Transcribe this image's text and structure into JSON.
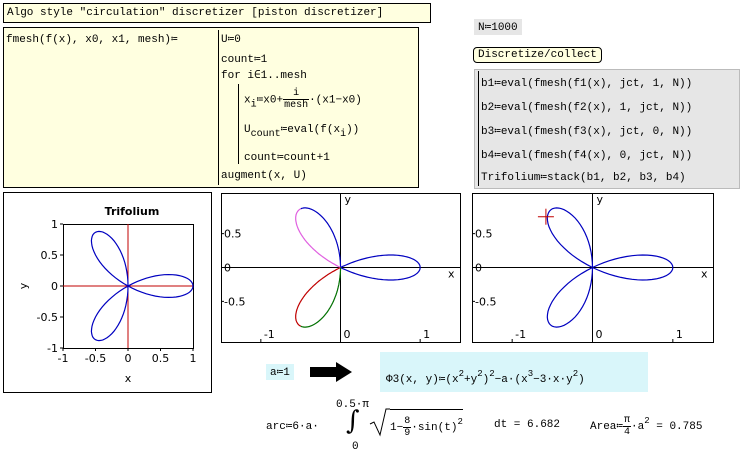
{
  "header": {
    "title": "Algo style \"circulation\" discretizer [piston discretizer]"
  },
  "program": {
    "definition": "fmesh(f(x), x0, x1, mesh)≔",
    "lines": [
      "U≔0",
      "count≔1",
      "for i∈1..mesh"
    ],
    "loop_x": [
      "x",
      "i",
      "≔x0+",
      "i",
      "mesh",
      "·(x1−x0)"
    ],
    "loop_u": [
      "U",
      "count",
      "≔eval(f(x",
      "i",
      "))"
    ],
    "loop_count": "count≔count+1",
    "result": "augment(x, U)"
  },
  "setup": {
    "n": "N≔1000",
    "button": "Discretize/collect",
    "lines": [
      "b1≔eval(fmesh(f1(x), jct, 1, N))",
      "b2≔eval(fmesh(f2(x), 1, jct, N))",
      "b3≔eval(fmesh(f3(x), jct, 0, N))",
      "b4≔eval(fmesh(f4(x), 0, jct, N))",
      "Trifolium≔stack(b1, b2, b3, b4)"
    ]
  },
  "plots": [
    {
      "title": "Trifolium",
      "xlabel": "x",
      "ylabel": "y",
      "xlim": [
        -1,
        1
      ],
      "ylim": [
        -1,
        1
      ],
      "xticks": [
        -1,
        -0.5,
        0,
        0.5,
        1
      ],
      "yticks": [
        -1,
        -0.5,
        0,
        0.5,
        1
      ],
      "colors": [
        "#0000c0"
      ],
      "axis_color": "#c00000"
    },
    {
      "xlabel": "x",
      "ylabel": "y",
      "xlim": [
        -1.5,
        1.5
      ],
      "ylim": [
        -1.1,
        1.1
      ],
      "xticks": [
        -1,
        0,
        1
      ],
      "yticks": [
        -0.5,
        0,
        0.5
      ],
      "colors": [
        "#0000c0",
        "#e060e0",
        "#c00000",
        "#007000"
      ],
      "axis_color": "#000000"
    },
    {
      "xlabel": "x",
      "ylabel": "y",
      "xlim": [
        -1.5,
        1.5
      ],
      "ylim": [
        -1.1,
        1.1
      ],
      "xticks": [
        -1,
        0,
        1
      ],
      "yticks": [
        -0.5,
        0,
        0.5
      ],
      "colors": [
        "#0000c0"
      ],
      "axis_color": "#000000",
      "marker": [
        -0.58,
        0.75
      ],
      "marker_color": "#c00000"
    }
  ],
  "variables": {
    "a_label": "a≔",
    "a": 1
  },
  "formula": {
    "phi": [
      "Φ3(x, y)≔(x",
      "2",
      "+y",
      "2",
      ")",
      "2",
      "−a·(x",
      "3",
      "−3·x·y",
      "2",
      ")"
    ],
    "arc": [
      "arc≔6·a·",
      "0.5·π",
      "0",
      "1−",
      "8",
      "9",
      "·sin(t)",
      "2",
      " dt = 6.682"
    ],
    "area": [
      "Area≔",
      "π",
      "4",
      "·a",
      "2",
      " = 0.785"
    ]
  }
}
